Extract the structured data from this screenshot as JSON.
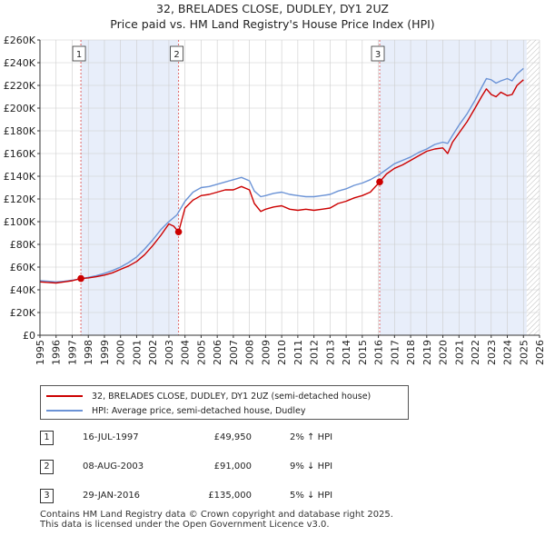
{
  "header": {
    "title": "32, BRELADES CLOSE, DUDLEY, DY1 2UZ",
    "subtitle": "Price paid vs. HM Land Registry's House Price Index (HPI)"
  },
  "colors": {
    "property": "#cc0000",
    "hpi": "#6b93d6",
    "shade": "#e8eefa",
    "grid": "#cccccc",
    "marker_line": "#e06666"
  },
  "legend": {
    "property_label": "32, BRELADES CLOSE, DUDLEY, DY1 2UZ (semi-detached house)",
    "hpi_label": "HPI: Average price, semi-detached house, Dudley"
  },
  "sales": [
    {
      "num": "1",
      "date": "16-JUL-1997",
      "price": "£49,950",
      "hpi": "2% ↑ HPI"
    },
    {
      "num": "2",
      "date": "08-AUG-2003",
      "price": "£91,000",
      "hpi": "9% ↓ HPI"
    },
    {
      "num": "3",
      "date": "29-JAN-2016",
      "price": "£135,000",
      "hpi": "5% ↓ HPI"
    }
  ],
  "footer": {
    "line1": "Contains HM Land Registry data © Crown copyright and database right 2025.",
    "line2": "This data is licensed under the Open Government Licence v3.0."
  },
  "chart_data": {
    "type": "line",
    "title": "32, BRELADES CLOSE, DUDLEY, DY1 2UZ",
    "subtitle": "Price paid vs. HM Land Registry's House Price Index (HPI)",
    "xlabel": "",
    "ylabel": "",
    "xlim": [
      1995,
      2026
    ],
    "ylim": [
      0,
      260000
    ],
    "x_ticks": [
      1995,
      1996,
      1997,
      1998,
      1999,
      2000,
      2001,
      2002,
      2003,
      2004,
      2005,
      2006,
      2007,
      2008,
      2009,
      2010,
      2011,
      2012,
      2013,
      2014,
      2015,
      2016,
      2017,
      2018,
      2019,
      2020,
      2021,
      2022,
      2023,
      2024,
      2025,
      2026
    ],
    "y_ticks": [
      0,
      20000,
      40000,
      60000,
      80000,
      100000,
      120000,
      140000,
      160000,
      180000,
      200000,
      220000,
      240000,
      260000
    ],
    "y_tick_labels": [
      "£0",
      "£20K",
      "£40K",
      "£60K",
      "£80K",
      "£100K",
      "£120K",
      "£140K",
      "£160K",
      "£180K",
      "£200K",
      "£220K",
      "£240K",
      "£260K"
    ],
    "grid": true,
    "shaded_ranges": [
      [
        1997.54,
        2003.6
      ],
      [
        2016.08,
        2025.2
      ]
    ],
    "hatched_range": [
      2025.2,
      2026
    ],
    "series": [
      {
        "name": "32, BRELADES CLOSE, DUDLEY, DY1 2UZ (semi-detached house)",
        "x": [
          1995,
          1995.5,
          1996,
          1996.5,
          1997,
          1997.54,
          1998,
          1998.5,
          1999,
          1999.5,
          2000,
          2000.5,
          2001,
          2001.5,
          2002,
          2002.5,
          2003,
          2003.3,
          2003.6,
          2004,
          2004.5,
          2005,
          2005.5,
          2006,
          2006.5,
          2007,
          2007.5,
          2008,
          2008.3,
          2008.7,
          2009,
          2009.5,
          2010,
          2010.5,
          2011,
          2011.5,
          2012,
          2012.5,
          2013,
          2013.5,
          2014,
          2014.5,
          2015,
          2015.5,
          2016.08,
          2016.5,
          2017,
          2017.5,
          2018,
          2018.5,
          2019,
          2019.5,
          2020,
          2020.3,
          2020.6,
          2021,
          2021.5,
          2022,
          2022.4,
          2022.7,
          2023,
          2023.3,
          2023.6,
          2024,
          2024.3,
          2024.6,
          2025
        ],
        "values": [
          47000,
          46500,
          46000,
          47000,
          48000,
          49950,
          50500,
          51500,
          53000,
          55000,
          58000,
          61000,
          65000,
          71000,
          79000,
          88000,
          98000,
          96000,
          91000,
          112000,
          119000,
          123000,
          124000,
          126000,
          128000,
          128000,
          131000,
          128000,
          116000,
          109000,
          111000,
          113000,
          114000,
          111000,
          110000,
          111000,
          110000,
          111000,
          112000,
          116000,
          118000,
          121000,
          123000,
          126000,
          135000,
          142000,
          147000,
          150000,
          154000,
          158000,
          162000,
          164000,
          165000,
          160000,
          170000,
          178000,
          188000,
          200000,
          210000,
          217000,
          212000,
          210000,
          214000,
          211000,
          212000,
          220000,
          225000
        ]
      },
      {
        "name": "HPI: Average price, semi-detached house, Dudley",
        "x": [
          1995,
          1995.5,
          1996,
          1996.5,
          1997,
          1997.5,
          1998,
          1998.5,
          1999,
          1999.5,
          2000,
          2000.5,
          2001,
          2001.5,
          2002,
          2002.5,
          2003,
          2003.5,
          2004,
          2004.5,
          2005,
          2005.5,
          2006,
          2006.5,
          2007,
          2007.5,
          2008,
          2008.3,
          2008.7,
          2009,
          2009.5,
          2010,
          2010.5,
          2011,
          2011.5,
          2012,
          2012.5,
          2013,
          2013.5,
          2014,
          2014.5,
          2015,
          2015.5,
          2016,
          2016.5,
          2017,
          2017.5,
          2018,
          2018.5,
          2019,
          2019.5,
          2020,
          2020.3,
          2020.6,
          2021,
          2021.5,
          2022,
          2022.4,
          2022.7,
          2023,
          2023.3,
          2023.6,
          2024,
          2024.3,
          2024.6,
          2025
        ],
        "values": [
          48000,
          47500,
          47000,
          47500,
          48500,
          49500,
          51000,
          52500,
          54500,
          57000,
          60000,
          64000,
          69000,
          76000,
          84000,
          93000,
          100000,
          106000,
          118000,
          126000,
          130000,
          131000,
          133000,
          135000,
          137000,
          139000,
          136000,
          127000,
          122000,
          123000,
          125000,
          126000,
          124000,
          123000,
          122000,
          122000,
          123000,
          124000,
          127000,
          129000,
          132000,
          134000,
          137000,
          141000,
          146000,
          151000,
          154000,
          157000,
          161000,
          164000,
          168000,
          170000,
          169000,
          176000,
          185000,
          195000,
          207000,
          218000,
          226000,
          225000,
          222000,
          224000,
          226000,
          224000,
          230000,
          235000
        ]
      }
    ],
    "sale_markers": [
      {
        "label": "1",
        "x": 1997.54,
        "value": 49950
      },
      {
        "label": "2",
        "x": 2003.6,
        "value": 91000
      },
      {
        "label": "3",
        "x": 2016.08,
        "value": 135000
      }
    ]
  }
}
